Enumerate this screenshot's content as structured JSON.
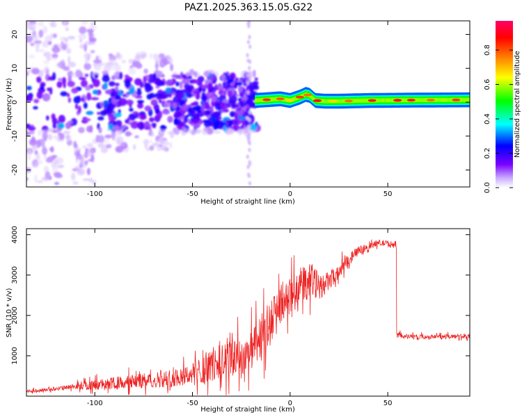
{
  "figure_title": "PAZ1.2025.363.15.05.G22",
  "chart_data": [
    {
      "type": "heatmap",
      "title": "PAZ1.2025.363.15.05.G22",
      "xlabel": "Height of straight line (km)",
      "ylabel": "Frequency (Hz)",
      "xlim": [
        -135,
        92
      ],
      "ylim": [
        -25,
        24
      ],
      "xticks": [
        -100,
        -50,
        0,
        50
      ],
      "yticks": [
        -20,
        -10,
        0,
        10,
        20
      ],
      "xtick_labels": [
        "-100",
        "-50",
        "0",
        "50"
      ],
      "ytick_labels": [
        "-20",
        "-10",
        "0",
        "10",
        "20"
      ],
      "colorbar": {
        "label": "Normalized spectral amplitude",
        "range": [
          0,
          0.97
        ],
        "ticks": [
          0,
          0.2,
          0.4,
          0.6,
          0.8
        ],
        "tick_labels": [
          "0.0",
          "0.2",
          "0.4",
          "0.6",
          "0.8"
        ],
        "colors": [
          "#ffffff",
          "#c9a8ff",
          "#7a00ff",
          "#0000ff",
          "#00ffff",
          "#00ff00",
          "#ffff00",
          "#ff8000",
          "#ff0000",
          "#ff0066"
        ]
      },
      "ridge": {
        "description": "strong narrow signal band after ~-18 km",
        "x": [
          -18,
          -10,
          -5,
          0,
          5,
          8,
          10,
          13,
          18,
          25,
          40,
          60,
          92
        ],
        "freq": [
          0.5,
          0.8,
          1.0,
          0.5,
          1.5,
          2.3,
          2.0,
          0.5,
          0.3,
          0.3,
          0.5,
          0.6,
          0.7
        ]
      },
      "noise_region": {
        "x_range": [
          -135,
          -20
        ],
        "freq_range": [
          -25,
          24
        ]
      }
    },
    {
      "type": "line",
      "xlabel": "Height of straight line (km)",
      "ylabel": "SNR (10 * v/v)",
      "xlim": [
        -135,
        92
      ],
      "ylim": [
        0,
        4150
      ],
      "xticks": [
        -100,
        -50,
        0,
        50
      ],
      "yticks": [
        1000,
        2000,
        3000,
        4000
      ],
      "xtick_labels": [
        "-100",
        "-50",
        "0",
        "50"
      ],
      "ytick_labels": [
        "1000",
        "2000",
        "3000",
        "4000"
      ],
      "color": "#ee2222",
      "series": [
        {
          "name": "SNR",
          "x": [
            -135,
            -120,
            -110,
            -100,
            -90,
            -80,
            -70,
            -60,
            -50,
            -45,
            -40,
            -35,
            -30,
            -25,
            -20,
            -15,
            -10,
            -5,
            0,
            5,
            10,
            15,
            20,
            25,
            30,
            35,
            40,
            45,
            50,
            54,
            55,
            60,
            70,
            80,
            92
          ],
          "values": [
            120,
            180,
            230,
            280,
            320,
            360,
            400,
            450,
            560,
            650,
            780,
            900,
            1000,
            950,
            1100,
            1350,
            1800,
            2300,
            2500,
            2700,
            2900,
            2700,
            2850,
            3100,
            3400,
            3600,
            3700,
            3800,
            3780,
            3750,
            1500,
            1480,
            1470,
            1480,
            1480
          ],
          "spread": [
            60,
            80,
            120,
            200,
            260,
            300,
            320,
            380,
            450,
            550,
            700,
            900,
            1000,
            900,
            800,
            1000,
            1100,
            900,
            700,
            600,
            900,
            500,
            400,
            300,
            250,
            180,
            150,
            130,
            130,
            120,
            100,
            90,
            90,
            90,
            90
          ]
        }
      ]
    }
  ]
}
